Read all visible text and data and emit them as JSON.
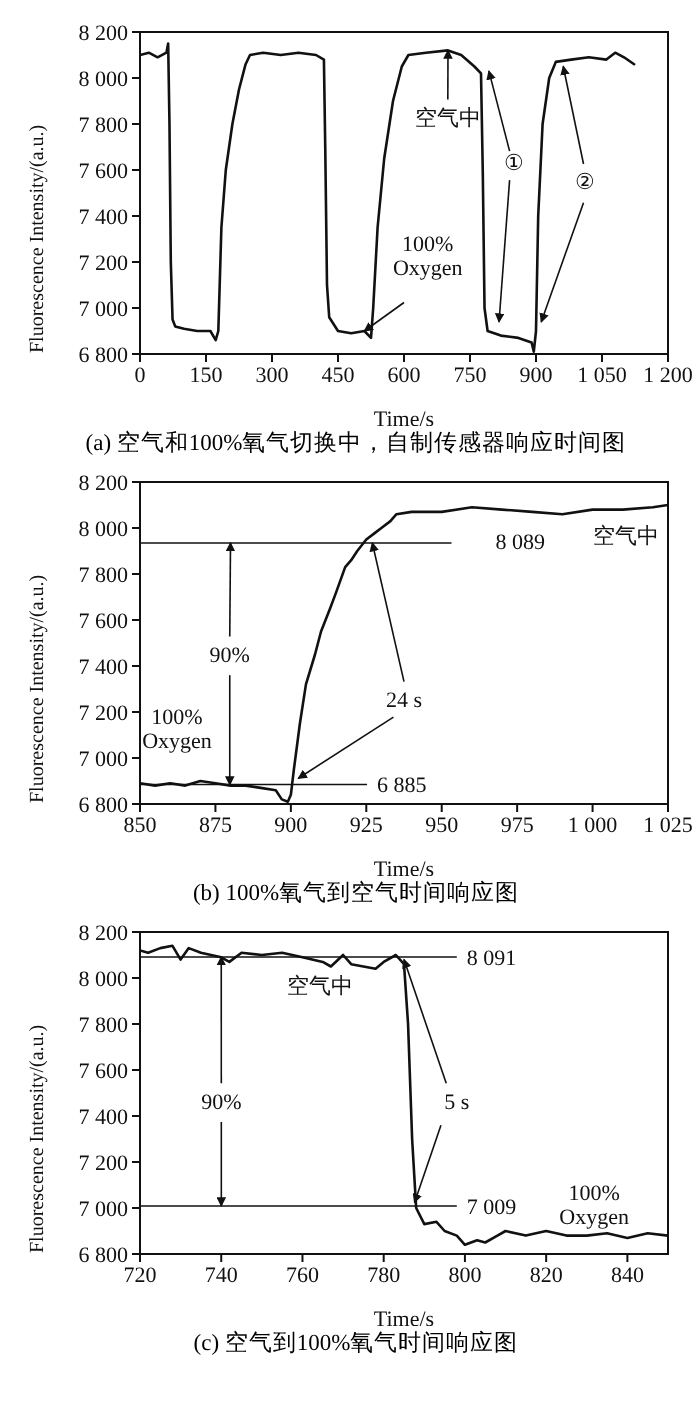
{
  "chart_data": [
    {
      "type": "line",
      "title": "(a) 空气和100%氧气切换中，自制传感器响应时间图",
      "xlabel": "Time/s",
      "ylabel": "Fluorescence Intensity/(a.u.)",
      "xlim": [
        0,
        1200
      ],
      "xticks": [
        0,
        150,
        300,
        450,
        600,
        750,
        900,
        {
          "value": 1050,
          "label": "1 050"
        },
        {
          "value": 1200,
          "label": "1 200"
        }
      ],
      "ylim": [
        6800,
        8200
      ],
      "yticks": [
        {
          "value": 6800,
          "label": "6 800"
        },
        {
          "value": 7000,
          "label": "7 000"
        },
        {
          "value": 7200,
          "label": "7 200"
        },
        {
          "value": 7400,
          "label": "7 400"
        },
        {
          "value": 7600,
          "label": "7 600"
        },
        {
          "value": 7800,
          "label": "7 800"
        },
        {
          "value": 8000,
          "label": "8 000"
        },
        {
          "value": 8200,
          "label": "8 200"
        }
      ],
      "marker": "none",
      "line_style": "solid",
      "grid": false,
      "legend": false,
      "series": [
        {
          "color": "#111111",
          "x": [
            0,
            20,
            40,
            60,
            64,
            67,
            70,
            74,
            80,
            100,
            130,
            160,
            172,
            178,
            185,
            195,
            210,
            225,
            240,
            250,
            280,
            320,
            360,
            400,
            418,
            421,
            425,
            430,
            450,
            480,
            510,
            525,
            530,
            540,
            555,
            575,
            595,
            610,
            650,
            700,
            730,
            760,
            775,
            779,
            783,
            790,
            820,
            860,
            890,
            895,
            900,
            905,
            915,
            930,
            945,
            980,
            1020,
            1060,
            1080,
            1100,
            1123
          ],
          "values": [
            8100,
            8110,
            8090,
            8110,
            8150,
            7800,
            7200,
            6950,
            6920,
            6910,
            6900,
            6900,
            6860,
            6900,
            7350,
            7600,
            7800,
            7950,
            8060,
            8100,
            8110,
            8100,
            8110,
            8100,
            8080,
            7700,
            7100,
            6960,
            6900,
            6890,
            6900,
            6870,
            7000,
            7350,
            7650,
            7900,
            8050,
            8100,
            8110,
            8120,
            8100,
            8050,
            8020,
            7600,
            7000,
            6900,
            6880,
            6870,
            6850,
            6810,
            6900,
            7400,
            7800,
            8000,
            8070,
            8080,
            8090,
            8080,
            8110,
            8090,
            8060
          ]
        }
      ],
      "annotations": [
        {
          "text": "空气中",
          "x": 700,
          "y": 8120
        },
        {
          "text": "100%\nOxygen",
          "x": 510,
          "y": 6900
        },
        {
          "text": "①",
          "x": 793,
          "y": 8030
        },
        {
          "text": "②",
          "x": 962,
          "y": 8050
        }
      ]
    },
    {
      "type": "line",
      "title": "(b) 100%氧气到空气时间响应图",
      "xlabel": "Time/s",
      "ylabel": "Fluorescence Intensity/(a.u.)",
      "xlim": [
        850,
        1025
      ],
      "xticks": [
        850,
        875,
        900,
        925,
        950,
        975,
        {
          "value": 1000,
          "label": "1 000"
        },
        {
          "value": 1025,
          "label": "1 025"
        }
      ],
      "ylim": [
        6800,
        8200
      ],
      "yticks": [
        {
          "value": 6800,
          "label": "6 800"
        },
        {
          "value": 7000,
          "label": "7 000"
        },
        {
          "value": 7200,
          "label": "7 200"
        },
        {
          "value": 7400,
          "label": "7 400"
        },
        {
          "value": 7600,
          "label": "7 600"
        },
        {
          "value": 7800,
          "label": "7 800"
        },
        {
          "value": 8000,
          "label": "8 000"
        },
        {
          "value": 8200,
          "label": "8 200"
        }
      ],
      "marker": "none",
      "line_style": "solid",
      "grid": false,
      "legend": false,
      "series": [
        {
          "color": "#111111",
          "x": [
            850,
            855,
            860,
            865,
            870,
            875,
            880,
            885,
            890,
            895,
            897,
            899,
            900,
            901,
            903,
            905,
            908,
            910,
            913,
            915,
            918,
            920,
            922,
            925,
            928,
            930,
            933,
            935,
            940,
            950,
            960,
            970,
            980,
            990,
            1000,
            1010,
            1020,
            1025
          ],
          "values": [
            6890,
            6880,
            6890,
            6880,
            6900,
            6890,
            6880,
            6880,
            6870,
            6860,
            6820,
            6810,
            6840,
            6950,
            7150,
            7320,
            7450,
            7550,
            7650,
            7720,
            7830,
            7860,
            7900,
            7950,
            7980,
            8000,
            8030,
            8060,
            8070,
            8070,
            8090,
            8080,
            8070,
            8060,
            8080,
            8080,
            8090,
            8100
          ]
        }
      ],
      "ref_lines": [
        {
          "axis": "y",
          "value": 7935,
          "color": "#111111"
        },
        {
          "axis": "y",
          "value": 6885,
          "label": "6 885",
          "color": "#111111"
        }
      ],
      "annotations": [
        "8 089",
        {
          "text": "90%",
          "x": 880,
          "y": 7935
        },
        {
          "text": "24 s",
          "x": 927,
          "y": 7935
        },
        "空气中",
        "100%\nOxygen"
      ]
    },
    {
      "type": "line",
      "title": "(c) 空气到100%氧气时间响应图",
      "xlabel": "Time/s",
      "ylabel": "Fluorescence Intensity/(a.u.)",
      "xlim": [
        720,
        850
      ],
      "xticks": [
        720,
        740,
        760,
        780,
        800,
        820,
        840
      ],
      "ylim": [
        6800,
        8200
      ],
      "yticks": [
        {
          "value": 6800,
          "label": "6 800"
        },
        {
          "value": 7000,
          "label": "7 000"
        },
        {
          "value": 7200,
          "label": "7 200"
        },
        {
          "value": 7400,
          "label": "7 400"
        },
        {
          "value": 7600,
          "label": "7 600"
        },
        {
          "value": 7800,
          "label": "7 800"
        },
        {
          "value": 8000,
          "label": "8 000"
        },
        {
          "value": 8200,
          "label": "8 200"
        }
      ],
      "marker": "none",
      "line_style": "solid",
      "grid": false,
      "legend": false,
      "series": [
        {
          "color": "#111111",
          "x": [
            720,
            722,
            725,
            728,
            730,
            732,
            735,
            740,
            742,
            745,
            750,
            755,
            760,
            765,
            767,
            770,
            772,
            775,
            778,
            780,
            783,
            785,
            786,
            787,
            788,
            790,
            793,
            795,
            798,
            800,
            803,
            805,
            808,
            810,
            815,
            820,
            825,
            830,
            835,
            840,
            845,
            850
          ],
          "values": [
            8120,
            8110,
            8130,
            8140,
            8080,
            8130,
            8110,
            8090,
            8070,
            8110,
            8100,
            8110,
            8090,
            8070,
            8050,
            8100,
            8060,
            8050,
            8040,
            8070,
            8100,
            8060,
            7800,
            7300,
            7000,
            6930,
            6940,
            6900,
            6880,
            6840,
            6860,
            6850,
            6880,
            6900,
            6880,
            6900,
            6880,
            6880,
            6890,
            6870,
            6890,
            6880
          ]
        }
      ],
      "ref_lines": [
        {
          "axis": "y",
          "value": 8091,
          "label": "8 091",
          "color": "#111111"
        },
        {
          "axis": "y",
          "value": 7009,
          "label": "7 009",
          "color": "#111111"
        }
      ],
      "annotations": [
        "空气中",
        {
          "text": "90%",
          "x": 740,
          "y": 8091
        },
        {
          "text": "5 s",
          "x": 785,
          "y": 8080
        },
        "100%\nOxygen"
      ]
    }
  ]
}
